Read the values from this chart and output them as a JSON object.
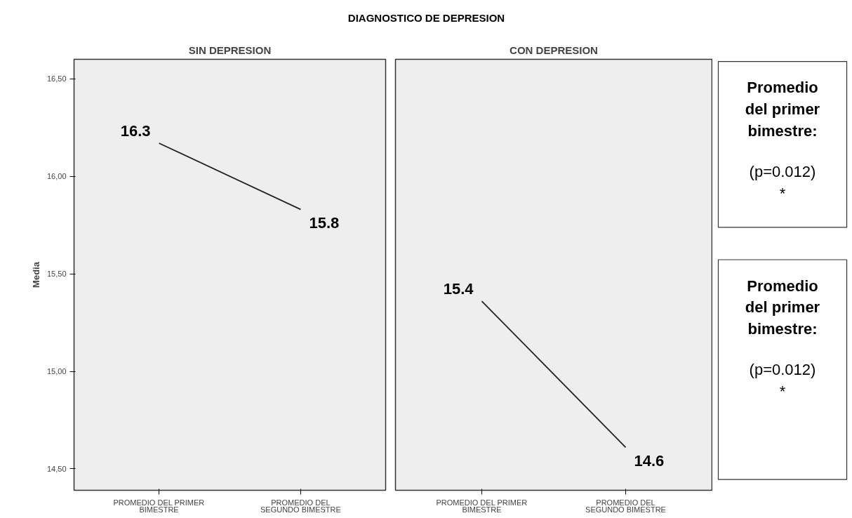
{
  "chart_data": [
    {
      "type": "line",
      "title": "DIAGNOSTICO DE DEPRESION",
      "subtitle": "SIN DEPRESION",
      "ylabel": "Media",
      "categories": [
        "PROMEDIO DEL PRIMER BIMESTRE",
        "PROMEDIO DEL SEGUNDO BIMESTRE"
      ],
      "series": [
        {
          "color": "#222222",
          "values": [
            16.17,
            15.83
          ]
        }
      ],
      "annotations": [
        "16.3",
        "15.8"
      ],
      "ylim": [
        14.39,
        16.6
      ],
      "yticks": [
        {
          "value": 14.5,
          "label": "14,50"
        },
        {
          "value": 15.0,
          "label": "15,00"
        },
        {
          "value": 15.5,
          "label": "15,50"
        },
        {
          "value": 16.0,
          "label": "16,00"
        },
        {
          "value": 16.5,
          "label": "16,50"
        }
      ],
      "grid": false,
      "marker": "none",
      "line_style": "solid"
    },
    {
      "type": "line",
      "subtitle": "CON DEPRESION",
      "categories": [
        "PROMEDIO DEL PRIMER BIMESTRE",
        "PROMEDIO DEL SEGUNDO BIMESTRE"
      ],
      "series": [
        {
          "color": "#222222",
          "values": [
            15.36,
            14.61
          ]
        }
      ],
      "annotations": [
        "15.4",
        "14.6"
      ],
      "ylim": [
        14.39,
        16.6
      ],
      "yticks": [
        {
          "value": 14.5,
          "label": "14,50"
        },
        {
          "value": 15.0,
          "label": "15,00"
        },
        {
          "value": 15.5,
          "label": "15,50"
        },
        {
          "value": 16.0,
          "label": "16,00"
        },
        {
          "value": 16.5,
          "label": "16,50"
        }
      ],
      "tick_labels": "x",
      "grid": false,
      "marker": "none",
      "line_style": "solid"
    },
    {
      "type": "other",
      "annotations": [
        "Promedio del primer bimestre:",
        "(p=0.012) *",
        "Promedio del primer bimestre:",
        "(p=0.012) *"
      ]
    }
  ]
}
